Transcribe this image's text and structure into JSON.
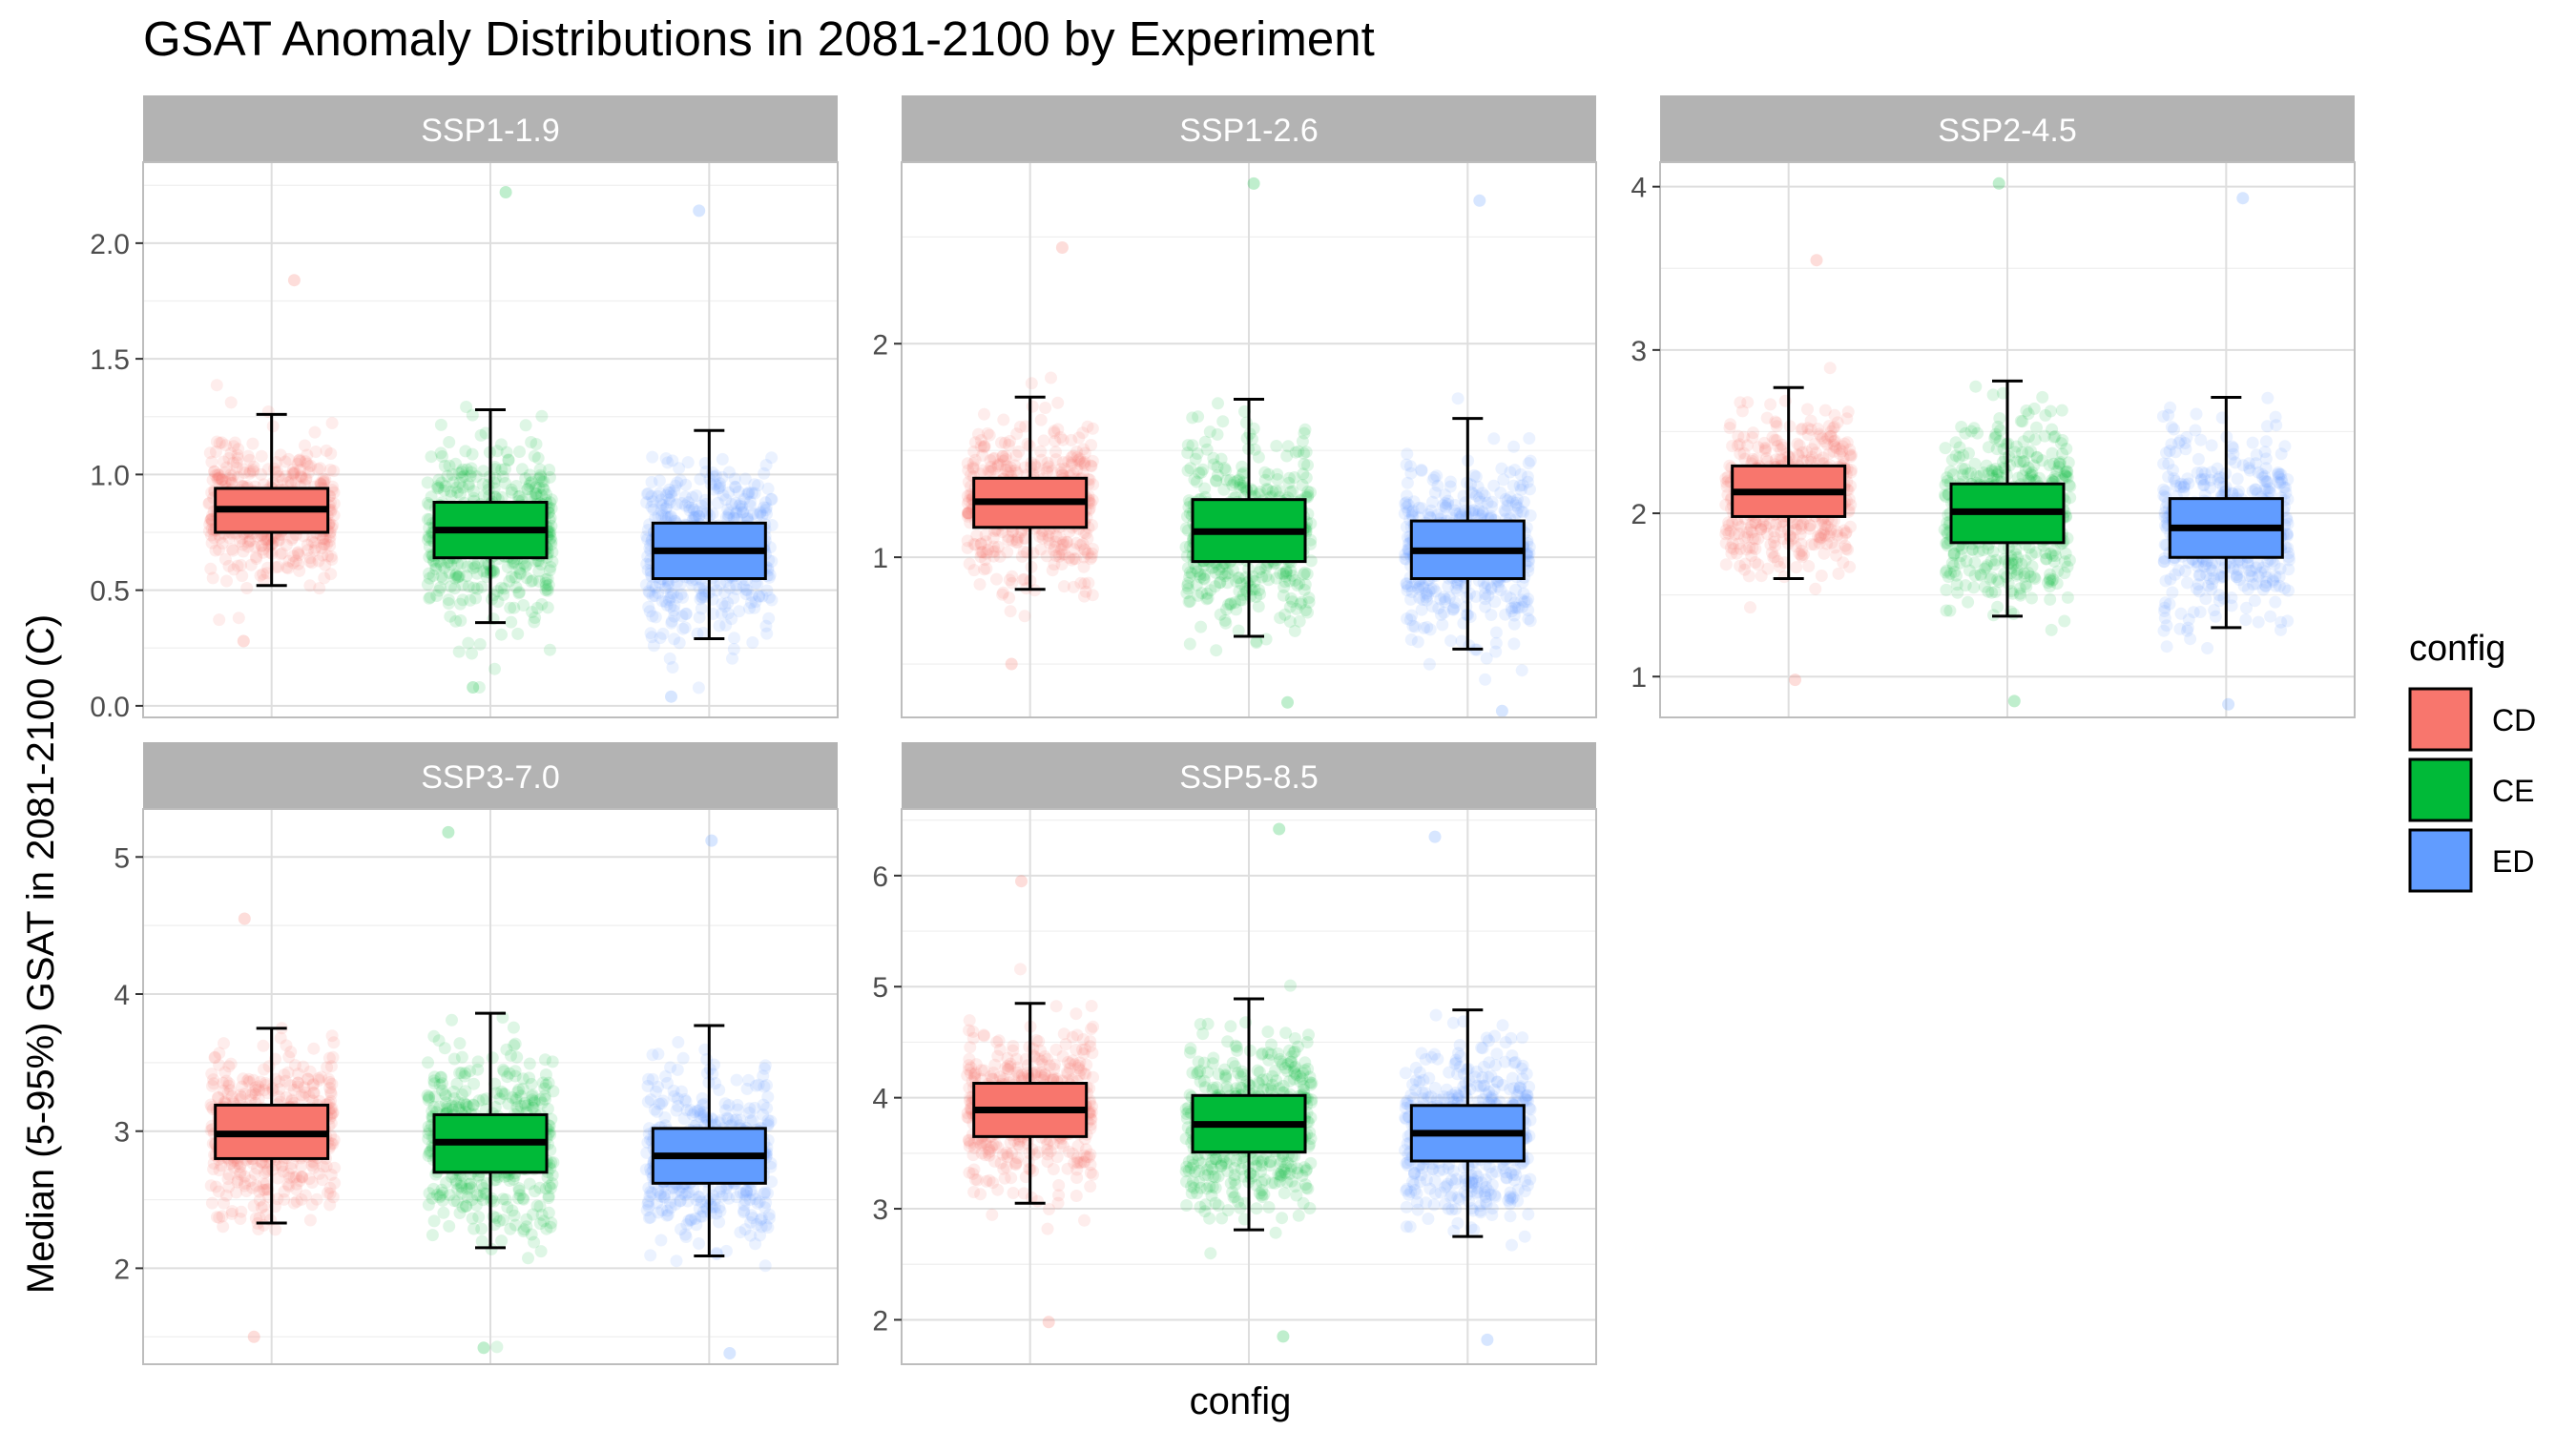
{
  "title": "GSAT Anomaly Distributions in 2081-2100 by Experiment",
  "ylabel": "Median (5-95%) GSAT in 2081-2100 (C)",
  "xlabel": "config",
  "legend": {
    "title": "config",
    "position": "right",
    "entries": [
      {
        "label": "CD",
        "color": "#F8766D"
      },
      {
        "label": "CE",
        "color": "#00BA38"
      },
      {
        "label": "ED",
        "color": "#619CFF"
      }
    ]
  },
  "chart_data": [
    {
      "type": "boxplot",
      "panel": "SSP1-1.9",
      "ylim": [
        -0.05,
        2.35
      ],
      "yticks": [
        "0.0",
        "0.5",
        "1.0",
        "1.5",
        "2.0"
      ],
      "grid": true,
      "series": [
        {
          "name": "CD",
          "whisker_low": 0.52,
          "q1": 0.75,
          "median": 0.85,
          "q3": 0.94,
          "whisker_high": 1.26,
          "point_range": [
            0.28,
            1.84
          ]
        },
        {
          "name": "CE",
          "whisker_low": 0.36,
          "q1": 0.64,
          "median": 0.76,
          "q3": 0.88,
          "whisker_high": 1.28,
          "point_range": [
            0.08,
            2.22
          ]
        },
        {
          "name": "ED",
          "whisker_low": 0.29,
          "q1": 0.55,
          "median": 0.67,
          "q3": 0.79,
          "whisker_high": 1.19,
          "point_range": [
            0.04,
            2.14
          ]
        }
      ]
    },
    {
      "type": "boxplot",
      "panel": "SSP1-2.6",
      "ylim": [
        0.25,
        2.85
      ],
      "yticks": [
        "1",
        "2"
      ],
      "grid": true,
      "series": [
        {
          "name": "CD",
          "whisker_low": 0.85,
          "q1": 1.14,
          "median": 1.26,
          "q3": 1.37,
          "whisker_high": 1.75,
          "point_range": [
            0.5,
            2.45
          ]
        },
        {
          "name": "CE",
          "whisker_low": 0.63,
          "q1": 0.98,
          "median": 1.12,
          "q3": 1.27,
          "whisker_high": 1.74,
          "point_range": [
            0.32,
            2.75
          ]
        },
        {
          "name": "ED",
          "whisker_low": 0.57,
          "q1": 0.9,
          "median": 1.03,
          "q3": 1.17,
          "whisker_high": 1.65,
          "point_range": [
            0.28,
            2.67
          ]
        }
      ]
    },
    {
      "type": "boxplot",
      "panel": "SSP2-4.5",
      "ylim": [
        0.75,
        4.15
      ],
      "yticks": [
        "1",
        "2",
        "3",
        "4"
      ],
      "grid": true,
      "series": [
        {
          "name": "CD",
          "whisker_low": 1.6,
          "q1": 1.98,
          "median": 2.13,
          "q3": 2.29,
          "whisker_high": 2.77,
          "point_range": [
            0.98,
            3.55
          ]
        },
        {
          "name": "CE",
          "whisker_low": 1.37,
          "q1": 1.82,
          "median": 2.01,
          "q3": 2.18,
          "whisker_high": 2.81,
          "point_range": [
            0.85,
            4.02
          ]
        },
        {
          "name": "ED",
          "whisker_low": 1.3,
          "q1": 1.73,
          "median": 1.91,
          "q3": 2.09,
          "whisker_high": 2.71,
          "point_range": [
            0.83,
            3.93
          ]
        }
      ]
    },
    {
      "type": "boxplot",
      "panel": "SSP3-7.0",
      "ylim": [
        1.3,
        5.35
      ],
      "yticks": [
        "2",
        "3",
        "4",
        "5"
      ],
      "grid": true,
      "series": [
        {
          "name": "CD",
          "whisker_low": 2.33,
          "q1": 2.8,
          "median": 2.98,
          "q3": 3.19,
          "whisker_high": 3.75,
          "point_range": [
            1.5,
            4.55
          ]
        },
        {
          "name": "CE",
          "whisker_low": 2.15,
          "q1": 2.7,
          "median": 2.92,
          "q3": 3.12,
          "whisker_high": 3.86,
          "point_range": [
            1.42,
            5.18
          ]
        },
        {
          "name": "ED",
          "whisker_low": 2.09,
          "q1": 2.62,
          "median": 2.82,
          "q3": 3.02,
          "whisker_high": 3.77,
          "point_range": [
            1.38,
            5.12
          ]
        }
      ]
    },
    {
      "type": "boxplot",
      "panel": "SSP5-8.5",
      "ylim": [
        1.6,
        6.6
      ],
      "yticks": [
        "2",
        "3",
        "4",
        "5",
        "6"
      ],
      "grid": true,
      "series": [
        {
          "name": "CD",
          "whisker_low": 3.05,
          "q1": 3.65,
          "median": 3.89,
          "q3": 4.13,
          "whisker_high": 4.85,
          "point_range": [
            1.98,
            5.95
          ]
        },
        {
          "name": "CE",
          "whisker_low": 2.81,
          "q1": 3.51,
          "median": 3.76,
          "q3": 4.02,
          "whisker_high": 4.89,
          "point_range": [
            1.85,
            6.42
          ]
        },
        {
          "name": "ED",
          "whisker_low": 2.75,
          "q1": 3.43,
          "median": 3.68,
          "q3": 3.93,
          "whisker_high": 4.79,
          "point_range": [
            1.82,
            6.35
          ]
        }
      ]
    }
  ]
}
